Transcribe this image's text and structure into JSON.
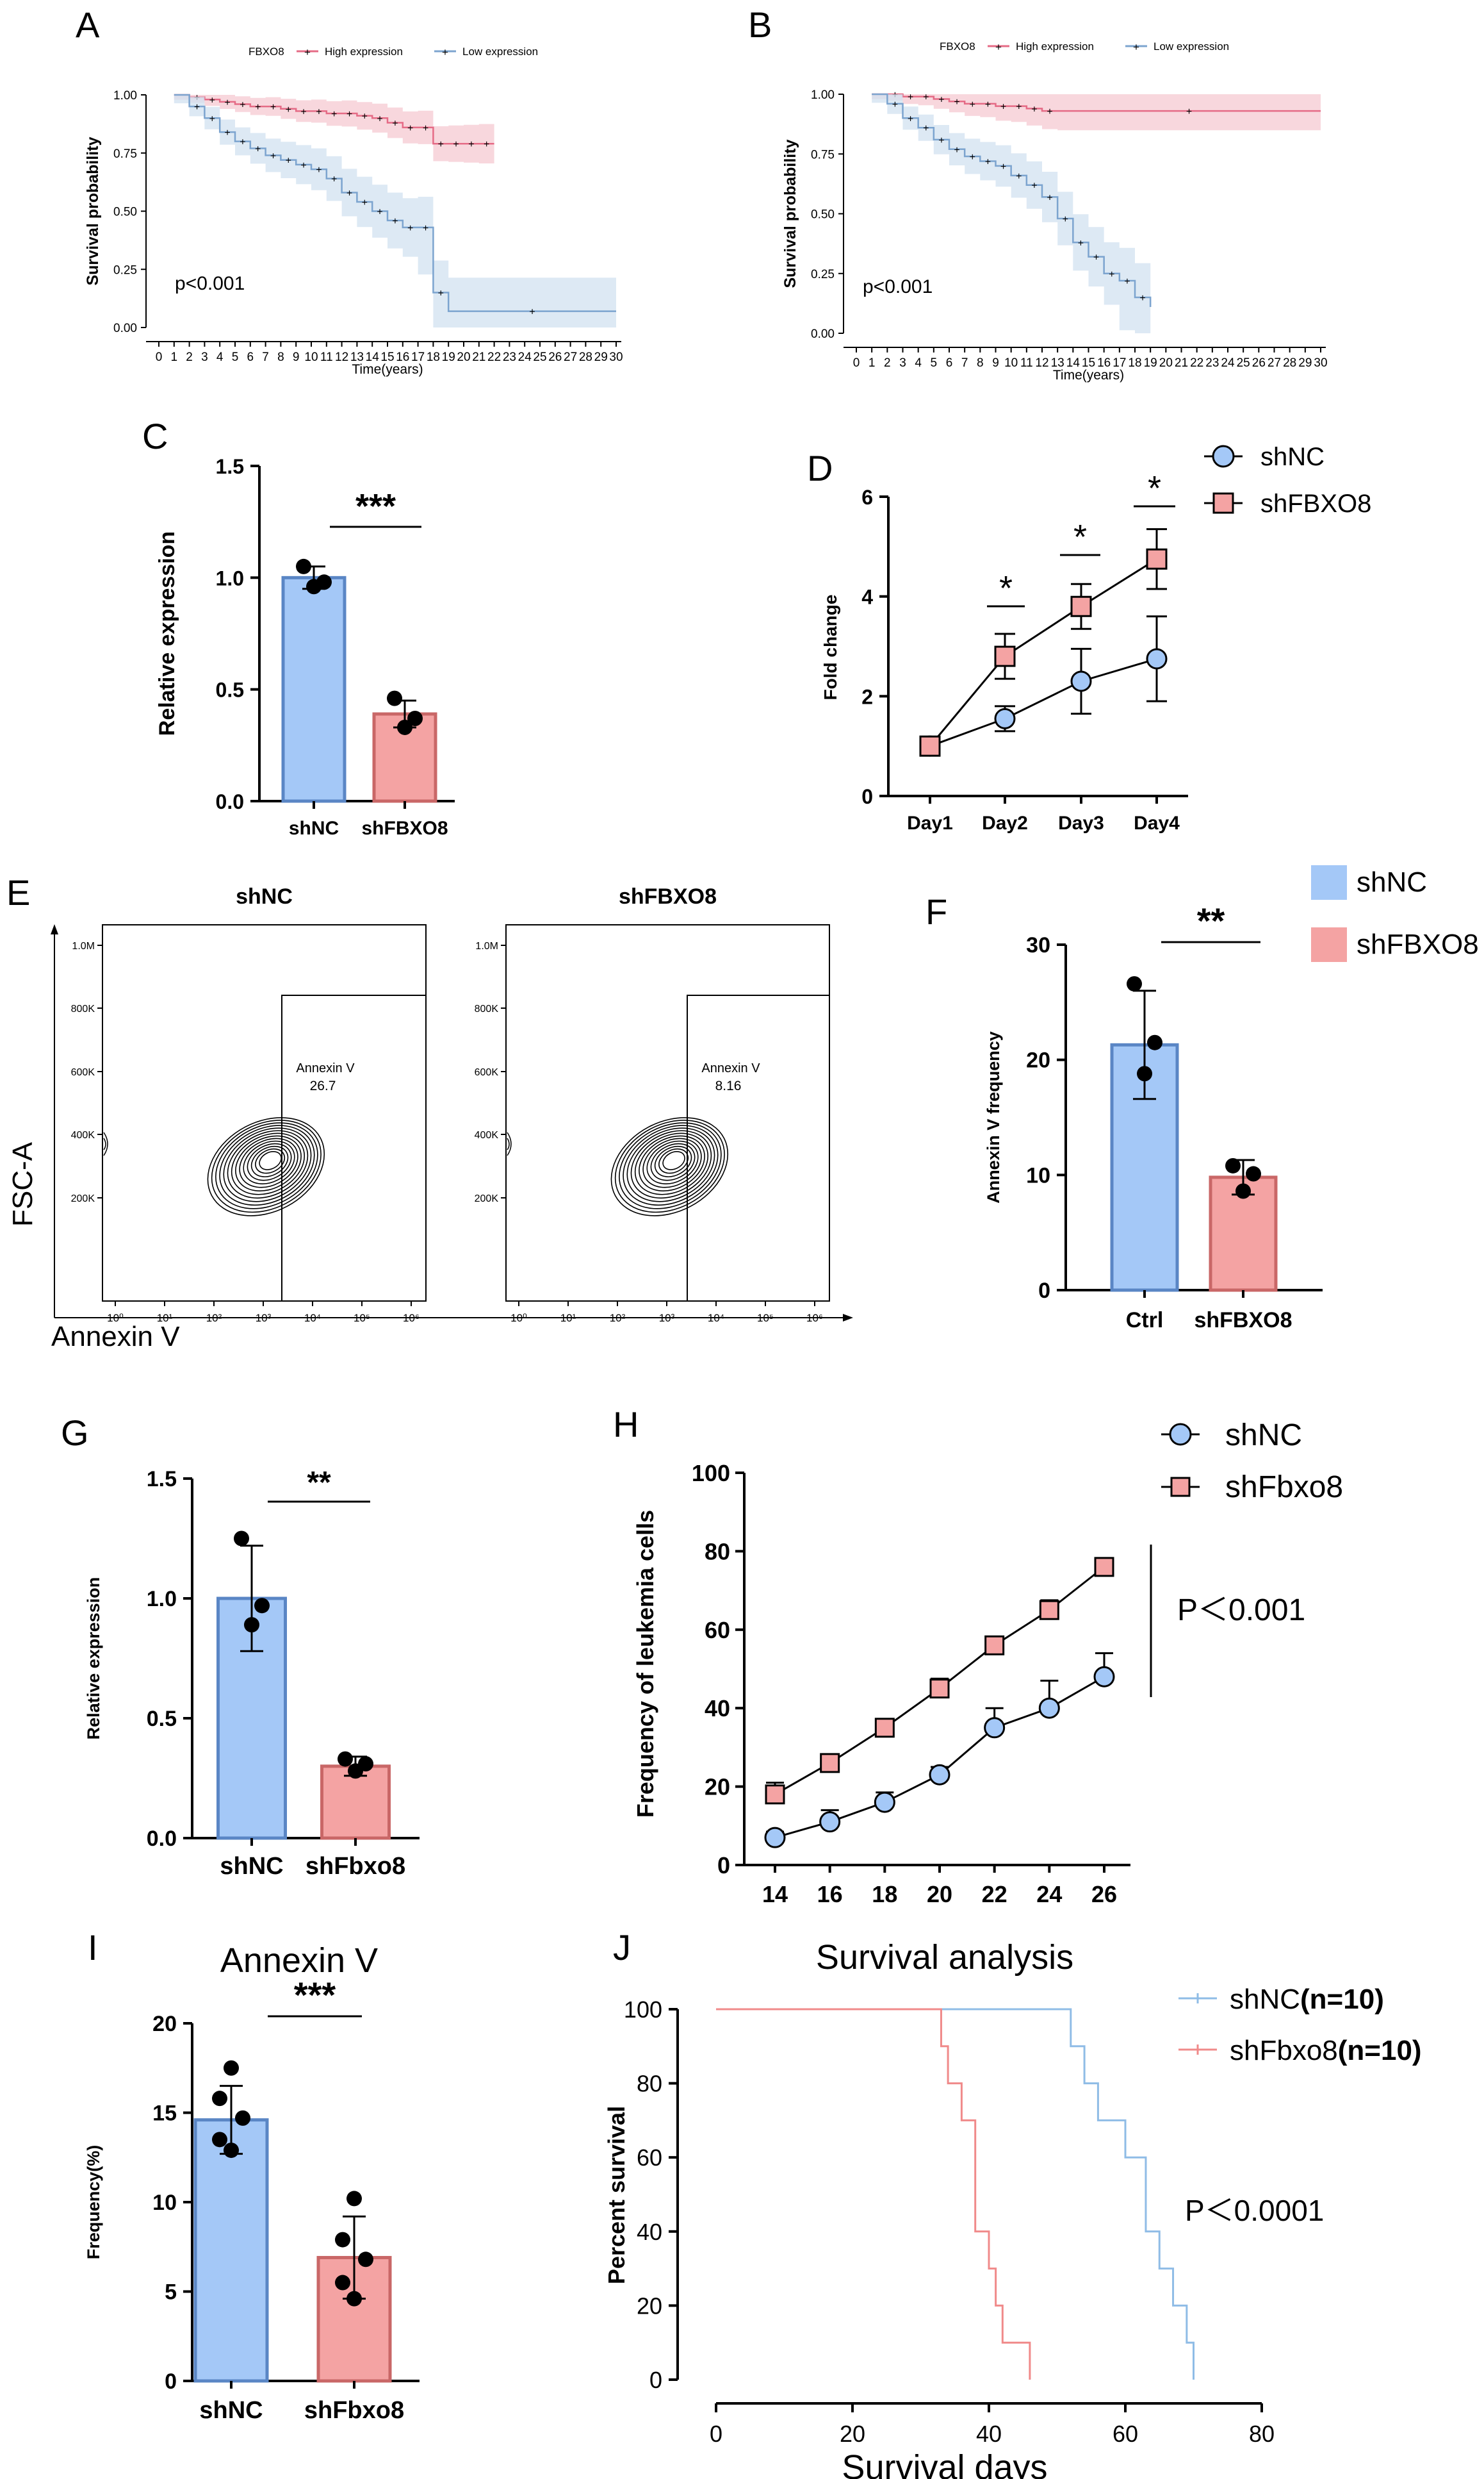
{
  "colors": {
    "blue_fill": "#a4c8f7",
    "blue_line": "#5a86c5",
    "red_fill": "#f4a3a3",
    "red_line": "#c96767",
    "km_high": "#e56b86",
    "km_high_band": "#f6c9d2",
    "km_low": "#7ca4cf",
    "km_low_band": "#d2e1f0",
    "surv_blue": "#8fbce6",
    "surv_red": "#f08a8a"
  },
  "panels": {
    "A": {
      "label": "A"
    },
    "B": {
      "label": "B"
    },
    "C": {
      "label": "C"
    },
    "D": {
      "label": "D"
    },
    "E": {
      "label": "E"
    },
    "F": {
      "label": "F"
    },
    "G": {
      "label": "G"
    },
    "H": {
      "label": "H"
    },
    "I": {
      "label": "I"
    },
    "J": {
      "label": "J"
    }
  },
  "chart_data": [
    {
      "id": "A",
      "type": "line",
      "title": "",
      "legend_title": "FBXO8",
      "legend": [
        "High expression",
        "Low expression"
      ],
      "xlabel": "Time(years)",
      "ylabel": "Survival probability",
      "xticks": [
        "0",
        "1",
        "2",
        "3",
        "4",
        "5",
        "6",
        "7",
        "8",
        "9",
        "10",
        "11",
        "12",
        "13",
        "14",
        "15",
        "16",
        "17",
        "18",
        "19",
        "20",
        "21",
        "22",
        "23",
        "24",
        "25",
        "26",
        "27",
        "28",
        "29",
        "30"
      ],
      "yticks": [
        "0.00",
        "0.25",
        "0.50",
        "0.75",
        "1.00"
      ],
      "xlim": [
        0,
        30
      ],
      "ylim": [
        0,
        1
      ],
      "annotation": "p<0.001",
      "series": [
        {
          "name": "High expression",
          "x": [
            1,
            2,
            3,
            4,
            5,
            6,
            7,
            8,
            9,
            10,
            11,
            12,
            13,
            14,
            15,
            16,
            17,
            18,
            19,
            20,
            21,
            22
          ],
          "y": [
            1.0,
            0.99,
            0.98,
            0.97,
            0.96,
            0.95,
            0.95,
            0.94,
            0.93,
            0.93,
            0.92,
            0.92,
            0.91,
            0.9,
            0.88,
            0.86,
            0.86,
            0.79,
            0.79,
            0.79,
            0.79,
            0.79
          ]
        },
        {
          "name": "Low expression",
          "x": [
            1,
            2,
            3,
            4,
            5,
            6,
            7,
            8,
            9,
            10,
            11,
            12,
            13,
            14,
            15,
            16,
            17,
            18,
            19,
            30
          ],
          "y": [
            1.0,
            0.95,
            0.9,
            0.84,
            0.8,
            0.77,
            0.74,
            0.72,
            0.7,
            0.68,
            0.64,
            0.58,
            0.54,
            0.5,
            0.46,
            0.43,
            0.43,
            0.15,
            0.07,
            0.07
          ]
        }
      ]
    },
    {
      "id": "B",
      "type": "line",
      "legend_title": "FBXO8",
      "legend": [
        "High expression",
        "Low expression"
      ],
      "xlabel": "Time(years)",
      "ylabel": "Survival probability",
      "xticks": [
        "0",
        "1",
        "2",
        "3",
        "4",
        "5",
        "6",
        "7",
        "8",
        "9",
        "10",
        "11",
        "12",
        "13",
        "14",
        "15",
        "16",
        "17",
        "18",
        "19",
        "20",
        "21",
        "22",
        "23",
        "24",
        "25",
        "26",
        "27",
        "28",
        "29",
        "30"
      ],
      "yticks": [
        "0.00",
        "0.25",
        "0.50",
        "0.75",
        "1.00"
      ],
      "xlim": [
        0,
        30
      ],
      "ylim": [
        0,
        1
      ],
      "annotation": "p<0.001",
      "series": [
        {
          "name": "High expression",
          "x": [
            1,
            2,
            3,
            4,
            5,
            6,
            7,
            8,
            9,
            10,
            11,
            12,
            13,
            30
          ],
          "y": [
            1.0,
            1.0,
            0.99,
            0.99,
            0.98,
            0.97,
            0.96,
            0.96,
            0.95,
            0.95,
            0.94,
            0.93,
            0.93,
            0.93
          ]
        },
        {
          "name": "Low expression",
          "x": [
            1,
            2,
            3,
            4,
            5,
            6,
            7,
            8,
            9,
            10,
            11,
            12,
            13,
            14,
            15,
            16,
            17,
            18,
            19
          ],
          "y": [
            1.0,
            0.96,
            0.9,
            0.86,
            0.81,
            0.77,
            0.74,
            0.72,
            0.7,
            0.66,
            0.62,
            0.57,
            0.48,
            0.38,
            0.32,
            0.25,
            0.22,
            0.15,
            0.11
          ]
        }
      ]
    },
    {
      "id": "C",
      "type": "bar",
      "categories": [
        "shNC",
        "shFBXO8"
      ],
      "values": [
        1.0,
        0.39
      ],
      "errors": [
        0.05,
        0.06
      ],
      "points": [
        [
          1.05,
          0.98,
          0.96
        ],
        [
          0.46,
          0.37,
          0.33
        ]
      ],
      "ylabel": "Relative expression",
      "yticks": [
        "0.0",
        "0.5",
        "1.0",
        "1.5"
      ],
      "ylim": [
        0,
        1.5
      ],
      "significance": "***"
    },
    {
      "id": "D",
      "type": "line",
      "categories": [
        "Day1",
        "Day2",
        "Day3",
        "Day4"
      ],
      "series": [
        {
          "name": "shNC",
          "values": [
            1.0,
            1.55,
            2.3,
            2.75
          ],
          "errors": [
            0.1,
            0.25,
            0.65,
            0.85
          ]
        },
        {
          "name": "shFBXO8",
          "values": [
            1.0,
            2.8,
            3.8,
            4.75
          ],
          "errors": [
            0.1,
            0.45,
            0.45,
            0.6
          ]
        }
      ],
      "ylabel": "Fold change",
      "yticks": [
        "0",
        "2",
        "4",
        "6"
      ],
      "ylim": [
        0,
        6
      ],
      "significance": [
        "*",
        "*",
        "*"
      ]
    },
    {
      "id": "E",
      "type": "scatter",
      "plots": [
        {
          "title": "shNC",
          "gate_label": "Annexin V",
          "gate_value": "26.7"
        },
        {
          "title": "shFBXO8",
          "gate_label": "Annexin V",
          "gate_value": "8.16"
        }
      ],
      "xticks": [
        "10⁰",
        "10¹",
        "10²",
        "10³",
        "10⁴",
        "10⁵",
        "10⁶"
      ],
      "yticks": [
        "1.0M",
        "800K",
        "600K",
        "400K",
        "200K"
      ],
      "xlabel": "Annexin V",
      "ylabel": "FSC-A"
    },
    {
      "id": "F",
      "type": "bar",
      "categories": [
        "Ctrl",
        "shFBXO8"
      ],
      "values": [
        21.3,
        9.8
      ],
      "errors": [
        4.7,
        1.5
      ],
      "points": [
        [
          26.6,
          21.5,
          18.8
        ],
        [
          10.8,
          10.1,
          8.6
        ]
      ],
      "ylabel": "Annexin V frequency",
      "yticks": [
        "0",
        "10",
        "20",
        "30"
      ],
      "ylim": [
        0,
        30
      ],
      "legend": [
        "shNC",
        "shFBXO8"
      ],
      "significance": "**"
    },
    {
      "id": "G",
      "type": "bar",
      "categories": [
        "shNC",
        "shFbxo8"
      ],
      "values": [
        1.0,
        0.3
      ],
      "errors": [
        0.22,
        0.04
      ],
      "points": [
        [
          1.25,
          0.97,
          0.89
        ],
        [
          0.33,
          0.31,
          0.28
        ]
      ],
      "ylabel": "Relative expression",
      "yticks": [
        "0.0",
        "0.5",
        "1.0",
        "1.5"
      ],
      "ylim": [
        0,
        1.5
      ],
      "significance": "**"
    },
    {
      "id": "H",
      "type": "line",
      "x": [
        14,
        16,
        18,
        20,
        22,
        24,
        26
      ],
      "series": [
        {
          "name": "shNC",
          "values": [
            7,
            11,
            16,
            23,
            35,
            40,
            48
          ],
          "errors": [
            1.5,
            3,
            2.5,
            2,
            5,
            7,
            6
          ]
        },
        {
          "name": "shFbxo8",
          "values": [
            18,
            26,
            35,
            45,
            56,
            65,
            76
          ],
          "errors": [
            3,
            2,
            1.5,
            2.5,
            2,
            2.5,
            1.5
          ]
        }
      ],
      "ylabel": "Frequency of  leukemia cells",
      "xticks": [
        "14",
        "16",
        "18",
        "20",
        "22",
        "24",
        "26"
      ],
      "yticks": [
        "0",
        "20",
        "40",
        "60",
        "80",
        "100"
      ],
      "ylim": [
        0,
        100
      ],
      "annotation": "P＜0.001"
    },
    {
      "id": "I",
      "type": "bar",
      "title": "Annexin V",
      "categories": [
        "shNC",
        "shFbxo8"
      ],
      "values": [
        14.6,
        6.9
      ],
      "errors": [
        1.9,
        2.3
      ],
      "points": [
        [
          17.5,
          15.8,
          14.7,
          13.5,
          12.9
        ],
        [
          10.2,
          7.9,
          6.8,
          5.5,
          4.6
        ]
      ],
      "ylabel": "Frequency(%)",
      "yticks": [
        "0",
        "5",
        "10",
        "15",
        "20"
      ],
      "ylim": [
        0,
        20
      ],
      "significance": "***"
    },
    {
      "id": "J",
      "type": "line",
      "title": "Survival analysis",
      "xlabel": "Survival days",
      "ylabel": "Percent survival",
      "xticks": [
        "0",
        "20",
        "40",
        "60",
        "80"
      ],
      "yticks": [
        "0",
        "20",
        "40",
        "60",
        "80",
        "100"
      ],
      "xlim": [
        0,
        80
      ],
      "ylim": [
        0,
        100
      ],
      "legend": [
        "shNC",
        "(n=10)",
        "shFbxo8",
        "(n=10)"
      ],
      "annotation": "P＜0.0001",
      "series": [
        {
          "name": "shNC(n=10)",
          "x": [
            0,
            52,
            54,
            56,
            60,
            63,
            65,
            67,
            69,
            70
          ],
          "y": [
            100,
            90,
            80,
            70,
            60,
            40,
            30,
            20,
            10,
            0
          ]
        },
        {
          "name": "shFbxo8(n=10)",
          "x": [
            0,
            33,
            34,
            36,
            38,
            40,
            41,
            42,
            44,
            46
          ],
          "y": [
            100,
            90,
            80,
            70,
            40,
            30,
            20,
            10,
            10,
            0
          ]
        }
      ]
    }
  ]
}
